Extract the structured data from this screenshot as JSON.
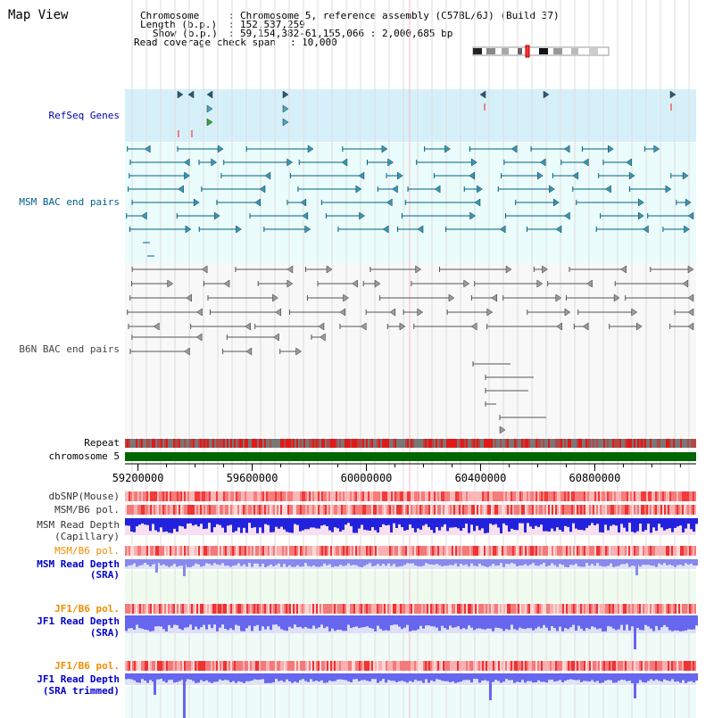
{
  "title": "Map View",
  "header": {
    "chromosome_label": "Chromosome",
    "chromosome_value": "Chromosome 5, reference assembly (C57BL/6J) (Build 37)",
    "length_label": "Length (b.p.)",
    "length_value": "152,537,259",
    "show_label": "Show (b.p.)",
    "show_value": "59,154,382-61,155,066 : 2,000,685 bp",
    "span_label": "Read coverage check span",
    "span_value": "10,000"
  },
  "tracks": {
    "refseq": "RefSeq Genes",
    "msm_bac": "MSM BAC end pairs",
    "b6n_bac": "B6N BAC end pairs",
    "repeat": "Repeat",
    "chromosome": "chromosome 5",
    "dbsnp": "dbSNP(Mouse)",
    "msm_b6_pol_1": "MSM/B6 pol.",
    "msm_depth_cap_1": "MSM Read Depth",
    "msm_depth_cap_2": "(Capillary)",
    "msm_b6_pol_2": "MSM/B6 pol.",
    "msm_depth_sra_1": "MSM Read Depth",
    "msm_depth_sra_2": "(SRA)",
    "jf1_b6_pol_1": "JF1/B6 pol.",
    "jf1_depth_sra_1": "JF1 Read Depth",
    "jf1_depth_sra_2": "(SRA)",
    "jf1_b6_pol_2": "JF1/B6 pol.",
    "jf1_depth_trim_1": "JF1 Read Depth",
    "jf1_depth_trim_2": "(SRA trimmed)"
  },
  "axis": {
    "start": 59154382,
    "end": 61155066,
    "ticks": [
      "59200000",
      "59600000",
      "60000000",
      "60400000",
      "60800000"
    ]
  },
  "colors": {
    "refseq_label": "#0000aa",
    "msm_label": "#005f87",
    "b6n_label": "#444444",
    "pol_msm_label": "#f08c00",
    "depth_label": "#0000cc",
    "chromosome_bar": "#006600",
    "refseq_bg": "#d6f0fa",
    "msm_bg": "#eafcfc",
    "b6n_bg": "#f8f8f8",
    "msm_feature": "#006080",
    "b6n_feature": "#555555",
    "refseq_feature": "#003a5a"
  }
}
